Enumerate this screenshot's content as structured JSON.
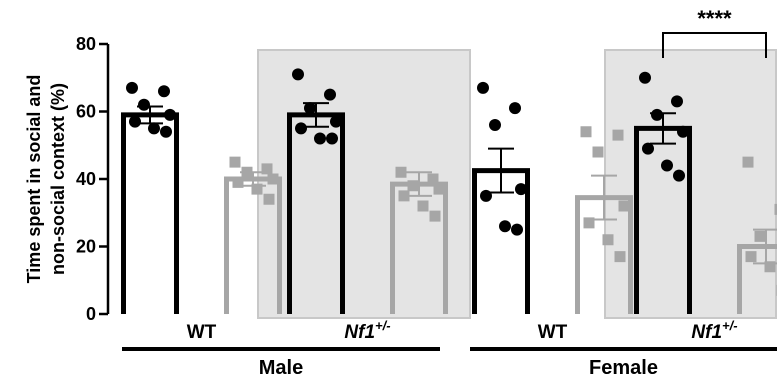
{
  "chart_data": {
    "type": "bar",
    "title": "",
    "ylabel": "Time spent in social and\nnon-social context (%)",
    "ylim": [
      0,
      80
    ],
    "yticks": [
      0,
      20,
      40,
      60,
      80
    ],
    "grid": false,
    "colors": {
      "social": "#000000",
      "non_social": "#a6a6a6",
      "highlight_background": "#e4e4e4",
      "highlight_border": "#c8c8c8"
    },
    "groups": [
      {
        "sex": "Male",
        "genotype": "WT",
        "genotype_superscript": "",
        "highlighted": false,
        "bars": [
          {
            "context": "social",
            "mean": 59,
            "sem": 2.5,
            "points": [
              67,
              66,
              62,
              59,
              57,
              55,
              54
            ]
          },
          {
            "context": "non-social",
            "mean": 40,
            "sem": 2,
            "points": [
              45,
              43,
              42,
              40,
              39,
              37,
              34
            ]
          }
        ]
      },
      {
        "sex": "Male",
        "genotype": "Nf1",
        "genotype_superscript": "+/-",
        "highlighted": true,
        "bars": [
          {
            "context": "social",
            "mean": 59,
            "sem": 3.5,
            "points": [
              71,
              65,
              61,
              57,
              55,
              52,
              52
            ]
          },
          {
            "context": "non-social",
            "mean": 38.5,
            "sem": 3.5,
            "points": [
              42,
              40,
              38,
              37,
              35,
              32,
              29
            ]
          }
        ]
      },
      {
        "sex": "Female",
        "genotype": "WT",
        "genotype_superscript": "",
        "highlighted": false,
        "bars": [
          {
            "context": "social",
            "mean": 42.5,
            "sem": 6.5,
            "points": [
              67,
              61,
              56,
              37,
              35,
              26,
              25
            ]
          },
          {
            "context": "non-social",
            "mean": 34.5,
            "sem": 6.5,
            "points": [
              54,
              53,
              48,
              32,
              27,
              22,
              17
            ]
          }
        ]
      },
      {
        "sex": "Female",
        "genotype": "Nf1",
        "genotype_superscript": "+/-",
        "highlighted": true,
        "bars": [
          {
            "context": "social",
            "mean": 55,
            "sem": 4.5,
            "points": [
              70,
              63,
              59,
              54,
              49,
              44,
              41
            ]
          },
          {
            "context": "non-social",
            "mean": 20,
            "sem": 5,
            "points": [
              45,
              31,
              23,
              21,
              17,
              14,
              7
            ]
          }
        ]
      }
    ],
    "sex_labels": [
      "Male",
      "Female"
    ],
    "significance": {
      "group_index": 3,
      "label": "****"
    }
  }
}
